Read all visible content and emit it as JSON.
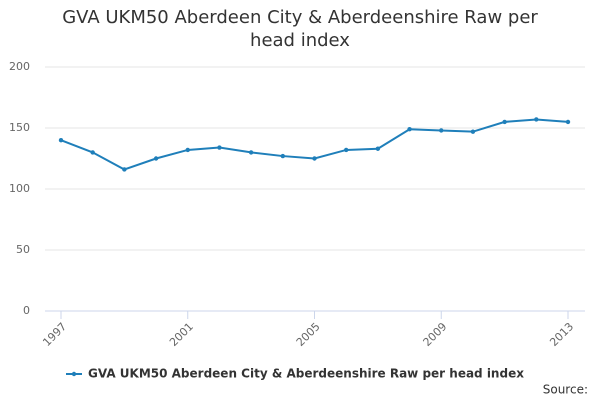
{
  "chart_data": {
    "type": "line",
    "title": "GVA UKM50 Aberdeen City & Aberdeenshire Raw per head index",
    "x": [
      1997,
      1998,
      1999,
      2000,
      2001,
      2002,
      2003,
      2004,
      2005,
      2006,
      2007,
      2008,
      2009,
      2010,
      2011,
      2012,
      2013
    ],
    "series": [
      {
        "name": "GVA UKM50 Aberdeen City & Aberdeenshire Raw per head index",
        "color": "#1f7fba",
        "values": [
          140,
          130,
          116,
          125,
          132,
          134,
          130,
          127,
          125,
          132,
          133,
          149,
          148,
          147,
          155,
          157,
          155
        ]
      }
    ],
    "xlim": [
      1997,
      2013
    ],
    "xticks": [
      1997,
      2001,
      2005,
      2009,
      2013
    ],
    "ylim": [
      0,
      200
    ],
    "yticks": [
      0,
      50,
      100,
      150,
      200
    ],
    "grid": true,
    "legend": "bottom",
    "source_label": "Source:"
  }
}
